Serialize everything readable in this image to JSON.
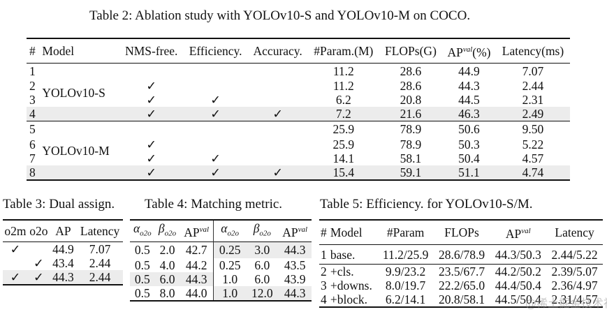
{
  "table2": {
    "caption": "Table 2: Ablation study with YOLOv10-S and YOLOv10-M on COCO.",
    "headers": [
      "#",
      "Model",
      "NMS-free.",
      "Efficiency.",
      "Accuracy.",
      "#Param.(M)",
      "FLOPs(G)",
      "AP",
      "(%)",
      "Latency(ms)"
    ],
    "ap_sup": "val",
    "check": "✓",
    "groups": [
      {
        "model": "YOLOv10-S",
        "rows": [
          {
            "id": "1",
            "nms": "",
            "eff": "",
            "acc": "",
            "param": "11.2",
            "flops": "28.6",
            "ap": "44.9",
            "lat": "7.07"
          },
          {
            "id": "2",
            "nms": "✓",
            "eff": "",
            "acc": "",
            "param": "11.2",
            "flops": "28.6",
            "ap": "44.3",
            "lat": "2.44"
          },
          {
            "id": "3",
            "nms": "✓",
            "eff": "✓",
            "acc": "",
            "param": "6.2",
            "flops": "20.8",
            "ap": "44.5",
            "lat": "2.31"
          },
          {
            "id": "4",
            "nms": "✓",
            "eff": "✓",
            "acc": "✓",
            "param": "7.2",
            "flops": "21.6",
            "ap": "46.3",
            "lat": "2.49"
          }
        ]
      },
      {
        "model": "YOLOv10-M",
        "rows": [
          {
            "id": "5",
            "nms": "",
            "eff": "",
            "acc": "",
            "param": "25.9",
            "flops": "78.9",
            "ap": "50.6",
            "lat": "9.50"
          },
          {
            "id": "6",
            "nms": "✓",
            "eff": "",
            "acc": "",
            "param": "25.9",
            "flops": "78.9",
            "ap": "50.3",
            "lat": "5.22"
          },
          {
            "id": "7",
            "nms": "✓",
            "eff": "✓",
            "acc": "",
            "param": "14.1",
            "flops": "58.1",
            "ap": "50.4",
            "lat": "4.57"
          },
          {
            "id": "8",
            "nms": "✓",
            "eff": "✓",
            "acc": "✓",
            "param": "15.4",
            "flops": "59.1",
            "ap": "51.1",
            "lat": "4.74"
          }
        ]
      }
    ]
  },
  "table3": {
    "caption": "Table 3: Dual assign.",
    "headers": [
      "o2m",
      "o2o",
      "AP",
      "Latency"
    ],
    "rows": [
      [
        "✓",
        "",
        "44.9",
        "7.07"
      ],
      [
        "",
        "✓",
        "43.4",
        "2.44"
      ],
      [
        "✓",
        "✓",
        "44.3",
        "2.44"
      ]
    ]
  },
  "table4": {
    "caption": "Table 4: Matching metric.",
    "alpha": "α",
    "beta": "β",
    "sub": "o2o",
    "ap": "AP",
    "ap_sup": "val",
    "rows": [
      [
        "0.5",
        "2.0",
        "42.7",
        "0.25",
        "3.0",
        "44.3"
      ],
      [
        "0.5",
        "4.0",
        "44.2",
        "0.25",
        "6.0",
        "43.5"
      ],
      [
        "0.5",
        "6.0",
        "44.3",
        "1.0",
        "6.0",
        "43.9"
      ],
      [
        "0.5",
        "8.0",
        "44.0",
        "1.0",
        "12.0",
        "44.3"
      ]
    ]
  },
  "table5": {
    "caption": "Table 5: Efficiency. for YOLOv10-S/M.",
    "headers": [
      "#",
      "Model",
      "#Param",
      "FLOPs",
      "AP",
      "Latency"
    ],
    "ap_sup": "val",
    "rows": [
      [
        "1",
        "base.",
        "11.2/25.9",
        "28.6/78.9",
        "44.3/50.3",
        "2.44/5.22"
      ],
      [
        "2",
        "+cls.",
        "9.9/23.2",
        "23.5/67.7",
        "44.2/50.2",
        "2.39/5.07"
      ],
      [
        "3",
        "+downs.",
        "8.0/19.7",
        "22.2/65.0",
        "44.4/50.4",
        "2.36/4.97"
      ],
      [
        "4",
        "+block.",
        "6.2/14.1",
        "20.8/58.1",
        "44.5/50.4",
        "2.31/4.57"
      ]
    ]
  },
  "watermark": "@稀土掘金技术社区"
}
